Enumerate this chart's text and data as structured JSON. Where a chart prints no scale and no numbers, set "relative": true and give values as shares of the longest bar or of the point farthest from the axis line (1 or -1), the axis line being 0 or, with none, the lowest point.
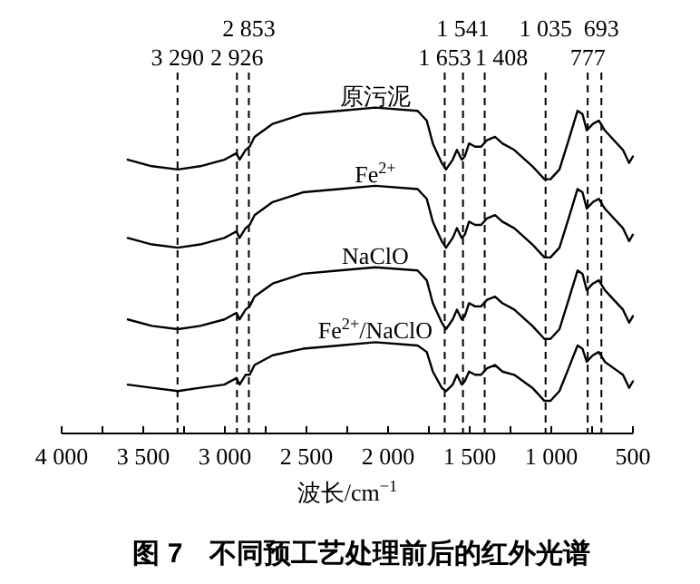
{
  "chart_data": {
    "type": "line",
    "title": "图 7　不同预工艺处理前后的红外光谱",
    "xlabel": "波长/cm$^{−1}$",
    "relative": true,
    "xlim": [
      4000,
      500
    ],
    "xticks": [
      {
        "value": 4000,
        "label": "4 000"
      },
      {
        "value": 3750,
        "label": null
      },
      {
        "value": 3500,
        "label": "3 500"
      },
      {
        "value": 3250,
        "label": null
      },
      {
        "value": 3000,
        "label": "3 000"
      },
      {
        "value": 2750,
        "label": null
      },
      {
        "value": 2500,
        "label": "2 500"
      },
      {
        "value": 2250,
        "label": null
      },
      {
        "value": 2000,
        "label": "2 000"
      },
      {
        "value": 1750,
        "label": null
      },
      {
        "value": 1500,
        "label": "1 500"
      },
      {
        "value": 1250,
        "label": null
      },
      {
        "value": 1000,
        "label": "1 000"
      },
      {
        "value": 750,
        "label": null
      },
      {
        "value": 500,
        "label": "500"
      }
    ],
    "x": [
      3595,
      3447,
      3288,
      3151,
      3003,
      2929,
      2910,
      2873,
      2848,
      2818,
      2707,
      2522,
      2300,
      2078,
      1819,
      1763,
      1726,
      1671,
      1645,
      1604,
      1578,
      1549,
      1530,
      1504,
      1467,
      1430,
      1394,
      1345,
      1300,
      1227,
      1116,
      1042,
      1005,
      950,
      894,
      839,
      809,
      783,
      745,
      709,
      672,
      617,
      561,
      523,
      500
    ],
    "series": [
      {
        "name": "原污泥",
        "color": "#000000",
        "values": [
          0.84,
          0.82,
          0.81,
          0.82,
          0.84,
          0.86,
          0.84,
          0.87,
          0.88,
          0.91,
          0.95,
          0.98,
          0.99,
          1.0,
          0.99,
          0.96,
          0.89,
          0.83,
          0.81,
          0.84,
          0.87,
          0.84,
          0.85,
          0.89,
          0.88,
          0.88,
          0.9,
          0.91,
          0.89,
          0.87,
          0.82,
          0.78,
          0.78,
          0.81,
          0.9,
          0.99,
          0.98,
          0.93,
          0.95,
          0.96,
          0.93,
          0.9,
          0.87,
          0.83,
          0.85
        ]
      },
      {
        "name": "Fe$^{2+}$",
        "color": "#000000",
        "values": [
          0.6,
          0.58,
          0.57,
          0.58,
          0.6,
          0.62,
          0.6,
          0.63,
          0.64,
          0.67,
          0.71,
          0.74,
          0.75,
          0.76,
          0.75,
          0.72,
          0.65,
          0.59,
          0.57,
          0.6,
          0.63,
          0.6,
          0.61,
          0.65,
          0.64,
          0.64,
          0.66,
          0.67,
          0.65,
          0.63,
          0.58,
          0.54,
          0.54,
          0.57,
          0.66,
          0.75,
          0.74,
          0.69,
          0.71,
          0.72,
          0.69,
          0.66,
          0.63,
          0.59,
          0.61
        ]
      },
      {
        "name": "NaClO",
        "color": "#000000",
        "values": [
          0.35,
          0.33,
          0.32,
          0.33,
          0.35,
          0.37,
          0.35,
          0.38,
          0.39,
          0.42,
          0.46,
          0.49,
          0.5,
          0.51,
          0.5,
          0.47,
          0.4,
          0.34,
          0.32,
          0.35,
          0.38,
          0.35,
          0.36,
          0.4,
          0.39,
          0.39,
          0.41,
          0.42,
          0.4,
          0.38,
          0.33,
          0.29,
          0.29,
          0.32,
          0.41,
          0.5,
          0.49,
          0.44,
          0.46,
          0.47,
          0.44,
          0.41,
          0.38,
          0.34,
          0.36
        ]
      },
      {
        "name": "Fe$^{2+}$/NaClO",
        "color": "#000000",
        "values": [
          0.15,
          0.14,
          0.13,
          0.14,
          0.15,
          0.17,
          0.15,
          0.18,
          0.18,
          0.21,
          0.24,
          0.26,
          0.27,
          0.28,
          0.27,
          0.25,
          0.19,
          0.14,
          0.13,
          0.15,
          0.18,
          0.15,
          0.16,
          0.19,
          0.18,
          0.18,
          0.2,
          0.21,
          0.19,
          0.18,
          0.14,
          0.1,
          0.1,
          0.13,
          0.2,
          0.27,
          0.26,
          0.22,
          0.24,
          0.25,
          0.22,
          0.2,
          0.18,
          0.14,
          0.16
        ]
      }
    ],
    "ref_lines": [
      {
        "axis": "x",
        "value": 3290,
        "label": "3 290",
        "line_style": "dashed",
        "color": "#000000"
      },
      {
        "axis": "x",
        "value": 2926,
        "label": "2 926",
        "line_style": "dashed",
        "color": "#000000"
      },
      {
        "axis": "x",
        "value": 2853,
        "label": "2 853",
        "line_style": "dashed",
        "color": "#000000"
      },
      {
        "axis": "x",
        "value": 1653,
        "label": "1 653",
        "line_style": "dashed",
        "color": "#000000"
      },
      {
        "axis": "x",
        "value": 1541,
        "label": "1 541",
        "line_style": "dashed",
        "color": "#000000"
      },
      {
        "axis": "x",
        "value": 1408,
        "label": "1 408",
        "line_style": "dashed",
        "color": "#000000"
      },
      {
        "axis": "x",
        "value": 1035,
        "label": "1 035",
        "line_style": "dashed",
        "color": "#000000"
      },
      {
        "axis": "x",
        "value": 777,
        "label": "777",
        "line_style": "dashed",
        "color": "#000000"
      },
      {
        "axis": "x",
        "value": 693,
        "label": "693",
        "line_style": "dashed",
        "color": "#000000"
      }
    ]
  }
}
